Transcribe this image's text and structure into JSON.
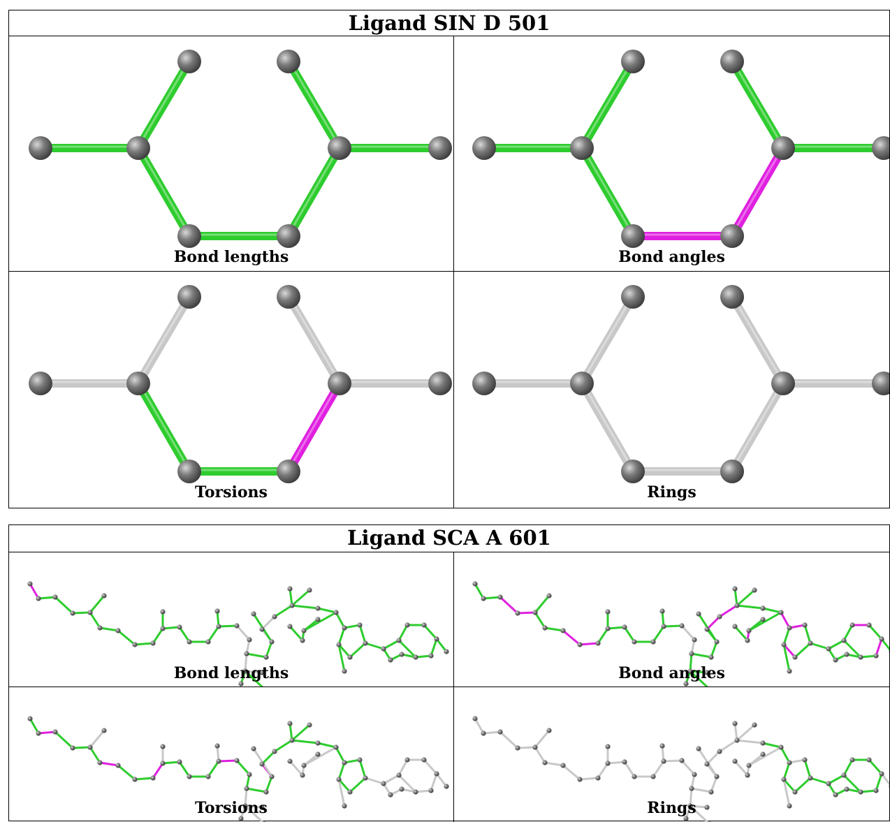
{
  "tables": [
    {
      "title": "Ligand SIN D 501",
      "panels": [
        {
          "caption": "Bond lengths"
        },
        {
          "caption": "Bond angles"
        },
        {
          "caption": "Torsions"
        },
        {
          "caption": "Rings"
        }
      ]
    },
    {
      "title": "Ligand SCA A 601",
      "panels": [
        {
          "caption": "Bond lengths"
        },
        {
          "caption": "Bond angles"
        },
        {
          "caption": "Torsions"
        },
        {
          "caption": "Rings"
        }
      ]
    }
  ],
  "colors": {
    "ok": "#2ecc2e",
    "outlier": "#e020e0",
    "neutral": "#c8c8c8",
    "atom": "#7a7a7a"
  }
}
